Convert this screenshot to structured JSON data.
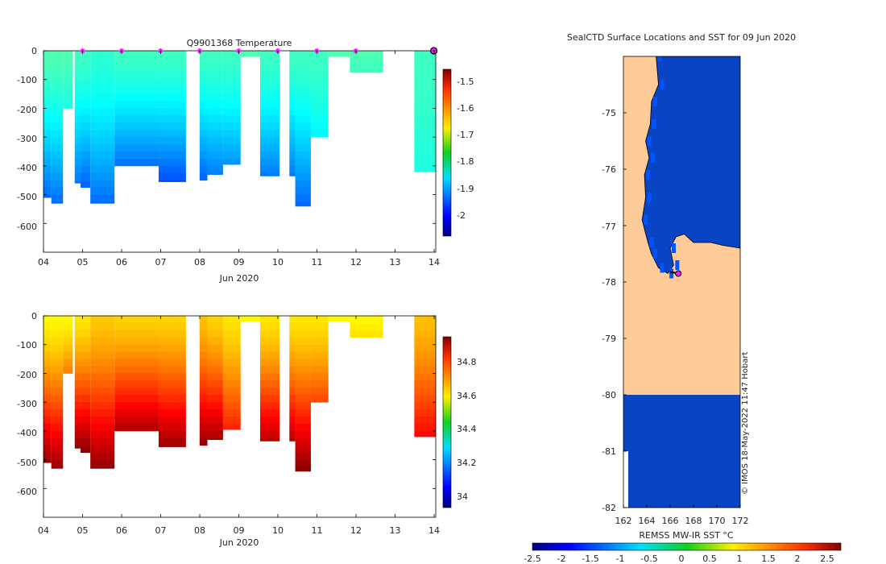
{
  "chart_data": [
    {
      "type": "heatmap",
      "title": "Q9901368  Temperature",
      "xlabel": "Jun 2020",
      "ylabel": "",
      "xlim": [
        4,
        14.05
      ],
      "ylim": [
        0,
        -700
      ],
      "x_ticks": [
        "04",
        "05",
        "06",
        "07",
        "08",
        "09",
        "10",
        "11",
        "12",
        "13",
        "14"
      ],
      "y_ticks": [
        "0",
        "-100",
        "-200",
        "-300",
        "-400",
        "-500",
        "-600"
      ],
      "colorbar": {
        "min": -2.07,
        "max": -1.45,
        "ticks": [
          "-1.5",
          "-1.6",
          "-1.7",
          "-1.8",
          "-1.9",
          "-2"
        ]
      },
      "surface_markers_day": [
        5,
        6,
        7,
        8,
        9,
        10,
        11,
        12
      ],
      "current_position_day": 14,
      "profiles": [
        {
          "x0": 4.0,
          "x1": 4.2,
          "depth": 510,
          "surface": -1.79,
          "bottom": -1.93
        },
        {
          "x0": 4.2,
          "x1": 4.5,
          "depth": 530,
          "surface": -1.79,
          "bottom": -1.93
        },
        {
          "x0": 4.5,
          "x1": 4.75,
          "depth": 200,
          "surface": -1.79,
          "bottom": -1.82
        },
        {
          "x0": 4.8,
          "x1": 4.95,
          "depth": 460,
          "surface": -1.8,
          "bottom": -1.92
        },
        {
          "x0": 4.95,
          "x1": 5.2,
          "depth": 475,
          "surface": -1.8,
          "bottom": -1.93
        },
        {
          "x0": 5.2,
          "x1": 5.82,
          "depth": 530,
          "surface": -1.81,
          "bottom": -1.93
        },
        {
          "x0": 5.82,
          "x1": 6.95,
          "depth": 400,
          "surface": -1.8,
          "bottom": -1.92
        },
        {
          "x0": 6.95,
          "x1": 7.65,
          "depth": 455,
          "surface": -1.8,
          "bottom": -1.95
        },
        {
          "x0": 8.0,
          "x1": 8.2,
          "depth": 450,
          "surface": -1.8,
          "bottom": -1.93
        },
        {
          "x0": 8.2,
          "x1": 8.6,
          "depth": 430,
          "surface": -1.8,
          "bottom": -1.92
        },
        {
          "x0": 8.6,
          "x1": 9.05,
          "depth": 395,
          "surface": -1.8,
          "bottom": -1.9
        },
        {
          "x0": 9.05,
          "x1": 9.55,
          "depth": 20,
          "surface": -1.79,
          "bottom": -1.79
        },
        {
          "x0": 9.55,
          "x1": 10.05,
          "depth": 435,
          "surface": -1.8,
          "bottom": -1.92
        },
        {
          "x0": 10.3,
          "x1": 10.45,
          "depth": 435,
          "surface": -1.8,
          "bottom": -1.92
        },
        {
          "x0": 10.45,
          "x1": 10.85,
          "depth": 540,
          "surface": -1.8,
          "bottom": -1.93
        },
        {
          "x0": 10.85,
          "x1": 11.3,
          "depth": 300,
          "surface": -1.8,
          "bottom": -1.84
        },
        {
          "x0": 11.3,
          "x1": 11.85,
          "depth": 20,
          "surface": -1.79,
          "bottom": -1.79
        },
        {
          "x0": 11.85,
          "x1": 12.7,
          "depth": 75,
          "surface": -1.79,
          "bottom": -1.8
        },
        {
          "x0": 13.5,
          "x1": 14.05,
          "depth": 420,
          "surface": -1.8,
          "bottom": -1.82
        }
      ]
    },
    {
      "type": "heatmap",
      "title": "",
      "xlabel": "Jun 2020",
      "ylabel": "",
      "xlim": [
        4,
        14.05
      ],
      "ylim": [
        0,
        -700
      ],
      "x_ticks": [
        "04",
        "05",
        "06",
        "07",
        "08",
        "09",
        "10",
        "11",
        "12",
        "13",
        "14"
      ],
      "y_ticks": [
        "0",
        "-100",
        "-200",
        "-300",
        "-400",
        "-500",
        "-600"
      ],
      "colorbar": {
        "min": 33.93,
        "max": 34.99,
        "ticks": [
          "34.8",
          "34.6",
          "34.4",
          "34.2",
          "34"
        ]
      },
      "profiles": [
        {
          "x0": 4.0,
          "x1": 4.2,
          "depth": 510,
          "surface": 34.6,
          "bottom": 34.97
        },
        {
          "x0": 4.2,
          "x1": 4.5,
          "depth": 530,
          "surface": 34.6,
          "bottom": 34.97
        },
        {
          "x0": 4.5,
          "x1": 4.75,
          "depth": 200,
          "surface": 34.6,
          "bottom": 34.72
        },
        {
          "x0": 4.8,
          "x1": 4.95,
          "depth": 460,
          "surface": 34.62,
          "bottom": 34.97
        },
        {
          "x0": 4.95,
          "x1": 5.2,
          "depth": 475,
          "surface": 34.62,
          "bottom": 34.97
        },
        {
          "x0": 5.2,
          "x1": 5.82,
          "depth": 530,
          "surface": 34.65,
          "bottom": 34.98
        },
        {
          "x0": 5.82,
          "x1": 6.95,
          "depth": 400,
          "surface": 34.64,
          "bottom": 34.93
        },
        {
          "x0": 6.95,
          "x1": 7.65,
          "depth": 455,
          "surface": 34.64,
          "bottom": 34.97
        },
        {
          "x0": 8.0,
          "x1": 8.2,
          "depth": 450,
          "surface": 34.66,
          "bottom": 34.96
        },
        {
          "x0": 8.2,
          "x1": 8.6,
          "depth": 430,
          "surface": 34.64,
          "bottom": 34.96
        },
        {
          "x0": 8.6,
          "x1": 9.05,
          "depth": 395,
          "surface": 34.62,
          "bottom": 34.82
        },
        {
          "x0": 9.05,
          "x1": 9.55,
          "depth": 20,
          "surface": 34.6,
          "bottom": 34.6
        },
        {
          "x0": 9.55,
          "x1": 10.05,
          "depth": 435,
          "surface": 34.62,
          "bottom": 34.93
        },
        {
          "x0": 10.3,
          "x1": 10.45,
          "depth": 435,
          "surface": 34.62,
          "bottom": 34.93
        },
        {
          "x0": 10.45,
          "x1": 10.85,
          "depth": 540,
          "surface": 34.62,
          "bottom": 34.98
        },
        {
          "x0": 10.85,
          "x1": 11.3,
          "depth": 300,
          "surface": 34.62,
          "bottom": 34.78
        },
        {
          "x0": 11.3,
          "x1": 11.85,
          "depth": 20,
          "surface": 34.6,
          "bottom": 34.6
        },
        {
          "x0": 11.85,
          "x1": 12.7,
          "depth": 75,
          "surface": 34.6,
          "bottom": 34.62
        },
        {
          "x0": 13.5,
          "x1": 14.05,
          "depth": 420,
          "surface": 34.66,
          "bottom": 34.85
        }
      ]
    },
    {
      "type": "heatmap",
      "title": "SealCTD Surface Locations and SST for 09 Jun 2020",
      "xlabel": "",
      "ylabel": "",
      "xlim": [
        162,
        172
      ],
      "ylim": [
        -82,
        -74
      ],
      "x_ticks": [
        "162",
        "164",
        "166",
        "168",
        "170",
        "172"
      ],
      "y_ticks": [
        "-75",
        "-76",
        "-77",
        "-78",
        "-79",
        "-80",
        "-81",
        "-82"
      ],
      "colorbar": {
        "label": "REMSS MW-IR SST °C",
        "min": -2.5,
        "max": 2.8,
        "ticks": [
          "-2.5",
          "-2",
          "-1.5",
          "-1",
          "-0.5",
          "0",
          "0.5",
          "1",
          "1.5",
          "2",
          "2.5"
        ]
      },
      "sst_open_water_value": -1.8,
      "land_color": "#ffcc99",
      "ocean_color": "#0844c4",
      "coast_west": [
        [
          164.8,
          -74.0
        ],
        [
          165.0,
          -74.5
        ],
        [
          164.4,
          -74.8
        ],
        [
          164.3,
          -75.2
        ],
        [
          163.9,
          -75.5
        ],
        [
          164.2,
          -75.8
        ],
        [
          163.8,
          -76.1
        ],
        [
          163.9,
          -76.5
        ],
        [
          163.6,
          -76.9
        ],
        [
          164.1,
          -77.3
        ],
        [
          164.4,
          -77.5
        ],
        [
          165.0,
          -77.75
        ],
        [
          165.8,
          -77.85
        ],
        [
          166.3,
          -77.7
        ],
        [
          166.0,
          -77.4
        ],
        [
          166.5,
          -77.2
        ],
        [
          167.2,
          -77.15
        ],
        [
          168.0,
          -77.3
        ],
        [
          169.5,
          -77.3
        ],
        [
          170.5,
          -77.35
        ],
        [
          172.0,
          -77.4
        ]
      ],
      "ice_edge_lat": -80.0,
      "float_position": {
        "lon": 166.7,
        "lat": -77.85
      },
      "track": [
        [
          166.0,
          -77.82
        ],
        [
          166.7,
          -77.85
        ]
      ],
      "credit": "© IMOS 18-May-2022 11:47 Hobart"
    }
  ]
}
